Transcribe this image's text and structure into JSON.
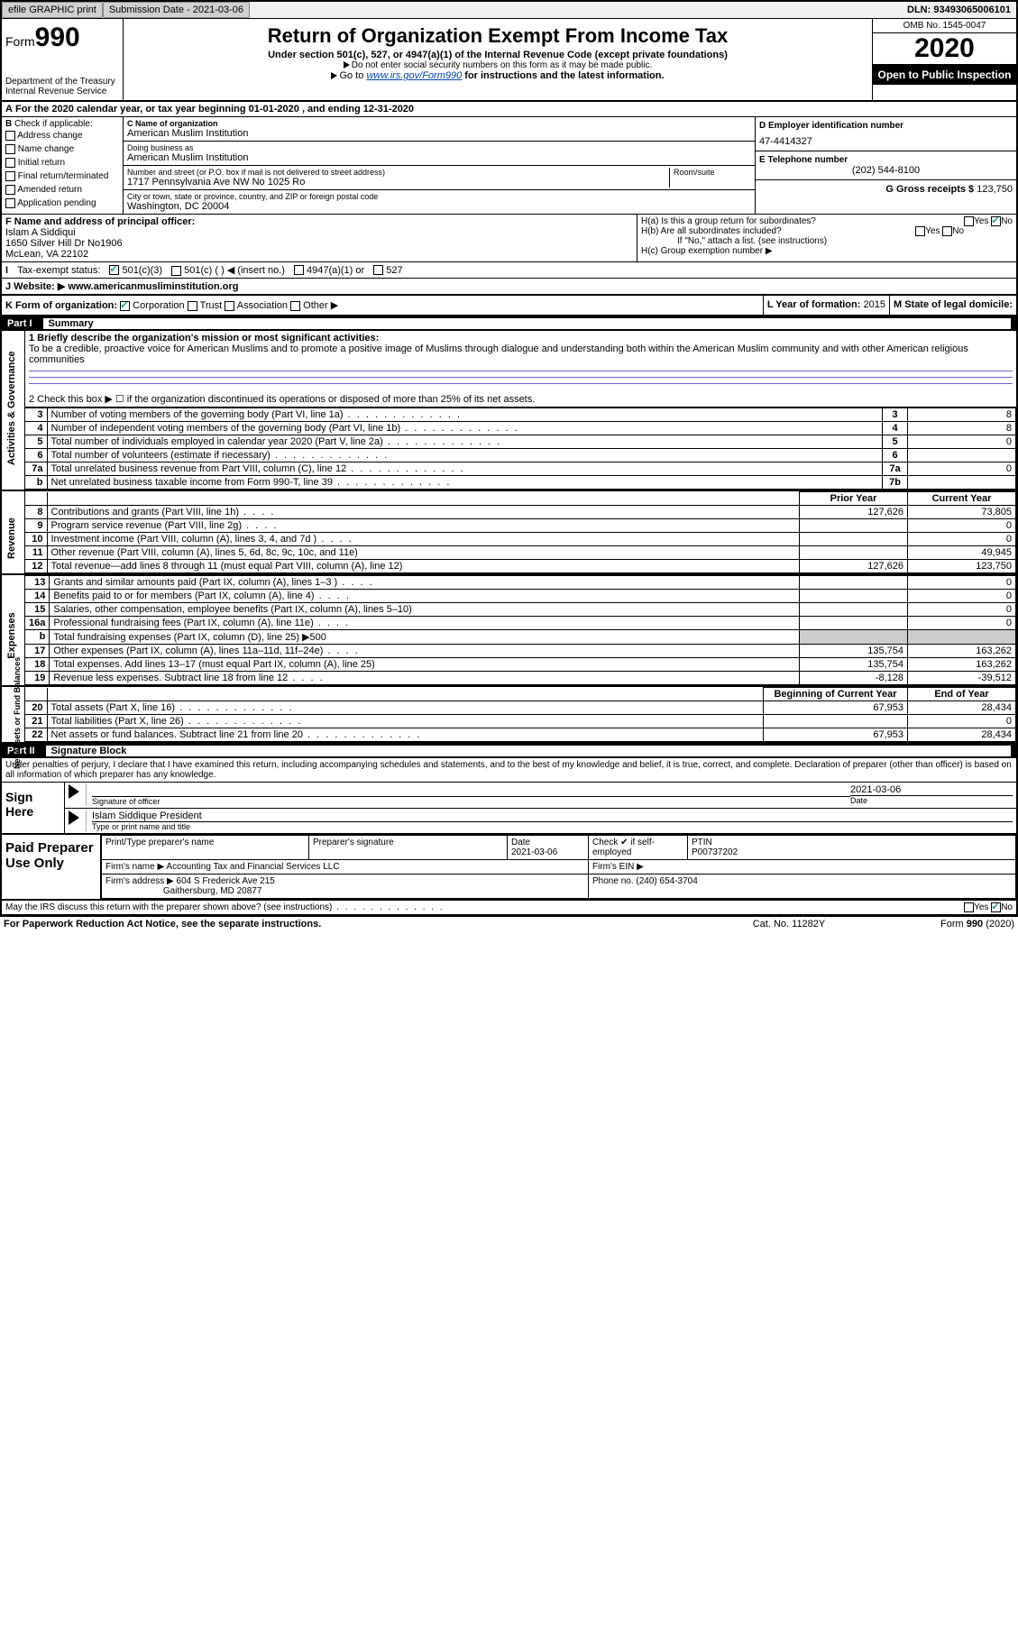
{
  "topbar": {
    "efile": "efile GRAPHIC print",
    "sub_label": "Submission Date - 2021-03-06",
    "dln": "DLN: 93493065006101"
  },
  "header": {
    "form_word": "Form",
    "form_num": "990",
    "dept": "Department of the Treasury\nInternal Revenue Service",
    "title": "Return of Organization Exempt From Income Tax",
    "subtitle": "Under section 501(c), 527, or 4947(a)(1) of the Internal Revenue Code (except private foundations)",
    "note1": "Do not enter social security numbers on this form as it may be made public.",
    "note2_pre": "Go to ",
    "note2_link": "www.irs.gov/Form990",
    "note2_post": " for instructions and the latest information.",
    "omb": "OMB No. 1545-0047",
    "year": "2020",
    "open": "Open to Public Inspection"
  },
  "rowA": "For the 2020 calendar year, or tax year beginning 01-01-2020    , and ending 12-31-2020",
  "B": {
    "intro": "Check if applicable:",
    "items": [
      "Address change",
      "Name change",
      "Initial return",
      "Final return/terminated",
      "Amended return",
      "Application pending"
    ]
  },
  "C": {
    "name_lbl": "C Name of organization",
    "name": "American Muslim Institution",
    "dba_lbl": "Doing business as",
    "dba": "American Muslim Institution",
    "street_lbl": "Number and street (or P.O. box if mail is not delivered to street address)",
    "street": "1717 Pennsylvania Ave NW No 1025 Ro",
    "room_lbl": "Room/suite",
    "city_lbl": "City or town, state or province, country, and ZIP or foreign postal code",
    "city": "Washington, DC  20004"
  },
  "D": {
    "lbl": "D Employer identification number",
    "val": "47-4414327"
  },
  "E": {
    "lbl": "E Telephone number",
    "val": "(202) 544-8100"
  },
  "G": {
    "lbl": "G Gross receipts $",
    "val": "123,750"
  },
  "F": {
    "lbl": "F  Name and address of principal officer:",
    "name": "Islam A Siddiqui",
    "addr1": "1650 Silver Hill Dr No1906",
    "addr2": "McLean, VA  22102"
  },
  "H": {
    "a": "H(a)  Is this a group return for subordinates?",
    "b": "H(b)  Are all subordinates included?",
    "b_note": "If \"No,\" attach a list. (see instructions)",
    "c": "H(c)  Group exemption number ▶",
    "yes": "Yes",
    "no": "No"
  },
  "I": {
    "lbl": "Tax-exempt status:",
    "opts": [
      "501(c)(3)",
      "501(c) (  ) ◀ (insert no.)",
      "4947(a)(1) or",
      "527"
    ]
  },
  "J": {
    "lbl": "J     Website: ▶",
    "val": "www.americanmusliminstitution.org"
  },
  "K": {
    "lbl": "K Form of organization:",
    "opts": [
      "Corporation",
      "Trust",
      "Association",
      "Other ▶"
    ]
  },
  "L": {
    "lbl": "L Year of formation:",
    "val": "2015"
  },
  "M": {
    "lbl": "M State of legal domicile:"
  },
  "part1": {
    "num": "Part I",
    "title": "Summary"
  },
  "tabs": {
    "act": "Activities & Governance",
    "rev": "Revenue",
    "exp": "Expenses",
    "net": "Net Assets or Fund Balances"
  },
  "q1": {
    "lbl": "1  Briefly describe the organization's mission or most significant activities:",
    "txt": "To be a credible, proactive voice for American Muslims and to promote a positive image of Muslims through dialogue and understanding both within the American Muslim community and with other American religious communities"
  },
  "q2": "2     Check this box ▶ ☐  if the organization discontinued its operations or disposed of more than 25% of its net assets.",
  "lines_gov": [
    {
      "n": "3",
      "d": "Number of voting members of the governing body (Part VI, line 1a)",
      "box": "3",
      "v": "8"
    },
    {
      "n": "4",
      "d": "Number of independent voting members of the governing body (Part VI, line 1b)",
      "box": "4",
      "v": "8"
    },
    {
      "n": "5",
      "d": "Total number of individuals employed in calendar year 2020 (Part V, line 2a)",
      "box": "5",
      "v": "0"
    },
    {
      "n": "6",
      "d": "Total number of volunteers (estimate if necessary)",
      "box": "6",
      "v": ""
    },
    {
      "n": "7a",
      "d": "Total unrelated business revenue from Part VIII, column (C), line 12",
      "box": "7a",
      "v": "0"
    },
    {
      "n": "b",
      "d": "Net unrelated business taxable income from Form 990-T, line 39",
      "box": "7b",
      "v": ""
    }
  ],
  "col_hdrs": {
    "py": "Prior Year",
    "cy": "Current Year"
  },
  "lines_rev": [
    {
      "n": "8",
      "d": "Contributions and grants (Part VIII, line 1h)",
      "py": "127,626",
      "cy": "73,805",
      "dots": "s"
    },
    {
      "n": "9",
      "d": "Program service revenue (Part VIII, line 2g)",
      "py": "",
      "cy": "0",
      "dots": "s"
    },
    {
      "n": "10",
      "d": "Investment income (Part VIII, column (A), lines 3, 4, and 7d )",
      "py": "",
      "cy": "0",
      "dots": "s"
    },
    {
      "n": "11",
      "d": "Other revenue (Part VIII, column (A), lines 5, 6d, 8c, 9c, 10c, and 11e)",
      "py": "",
      "cy": "49,945",
      "dots": ""
    },
    {
      "n": "12",
      "d": "Total revenue—add lines 8 through 11 (must equal Part VIII, column (A), line 12)",
      "py": "127,626",
      "cy": "123,750",
      "dots": ""
    }
  ],
  "lines_exp": [
    {
      "n": "13",
      "d": "Grants and similar amounts paid (Part IX, column (A), lines 1–3 )",
      "py": "",
      "cy": "0",
      "dots": "s"
    },
    {
      "n": "14",
      "d": "Benefits paid to or for members (Part IX, column (A), line 4)",
      "py": "",
      "cy": "0",
      "dots": "s"
    },
    {
      "n": "15",
      "d": "Salaries, other compensation, employee benefits (Part IX, column (A), lines 5–10)",
      "py": "",
      "cy": "0",
      "dots": ""
    },
    {
      "n": "16a",
      "d": "Professional fundraising fees (Part IX, column (A), line 11e)",
      "py": "",
      "cy": "0",
      "dots": "s"
    },
    {
      "n": "b",
      "d": "Total fundraising expenses (Part IX, column (D), line 25) ▶500",
      "gray": true,
      "dots": ""
    },
    {
      "n": "17",
      "d": "Other expenses (Part IX, column (A), lines 11a–11d, 11f–24e)",
      "py": "135,754",
      "cy": "163,262",
      "dots": "s"
    },
    {
      "n": "18",
      "d": "Total expenses. Add lines 13–17 (must equal Part IX, column (A), line 25)",
      "py": "135,754",
      "cy": "163,262",
      "dots": ""
    },
    {
      "n": "19",
      "d": "Revenue less expenses. Subtract line 18 from line 12",
      "py": "-8,128",
      "cy": "-39,512",
      "dots": "s"
    }
  ],
  "col_hdrs2": {
    "py": "Beginning of Current Year",
    "cy": "End of Year"
  },
  "lines_net": [
    {
      "n": "20",
      "d": "Total assets (Part X, line 16)",
      "py": "67,953",
      "cy": "28,434"
    },
    {
      "n": "21",
      "d": "Total liabilities (Part X, line 26)",
      "py": "",
      "cy": "0"
    },
    {
      "n": "22",
      "d": "Net assets or fund balances. Subtract line 21 from line 20",
      "py": "67,953",
      "cy": "28,434"
    }
  ],
  "part2": {
    "num": "Part II",
    "title": "Signature Block"
  },
  "sig_intro": "Under penalties of perjury, I declare that I have examined this return, including accompanying schedules and statements, and to the best of my knowledge and belief, it is true, correct, and complete. Declaration of preparer (other than officer) is based on all information of which preparer has any knowledge.",
  "sign": {
    "here": "Sign Here",
    "sig_lbl": "Signature of officer",
    "date": "2021-03-06",
    "date_lbl": "Date",
    "name": "Islam Siddique  President",
    "name_lbl": "Type or print name and title"
  },
  "prep": {
    "title": "Paid Preparer Use Only",
    "r1": {
      "c1": "Print/Type preparer's name",
      "c2": "Preparer's signature",
      "c3": "Date",
      "c3v": "2021-03-06",
      "c4": "Check ✔ if self-employed",
      "c5": "PTIN",
      "c5v": "P00737202"
    },
    "r2": {
      "c1": "Firm's name     ▶",
      "c1v": "Accounting Tax and Financial Services LLC",
      "c2": "Firm's EIN ▶"
    },
    "r3": {
      "c1": "Firm's address ▶",
      "c1v": "604 S Frederick Ave 215",
      "c1v2": "Gaithersburg, MD  20877",
      "c2": "Phone no.",
      "c2v": "(240) 654-3704"
    }
  },
  "discuss": "May the IRS discuss this return with the preparer shown above? (see instructions)",
  "footer": {
    "l": "For Paperwork Reduction Act Notice, see the separate instructions.",
    "m": "Cat. No. 11282Y",
    "r": "Form 990 (2020)"
  }
}
